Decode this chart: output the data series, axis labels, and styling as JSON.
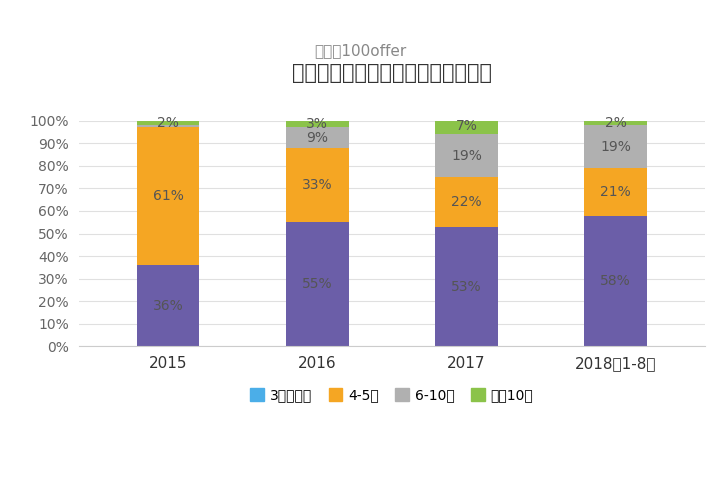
{
  "title": "历年数据类岗位求职者工作年限分布",
  "subtitle": "来源：100offer",
  "categories": [
    "2015",
    "2016",
    "2017",
    "2018年1-8月"
  ],
  "series": [
    {
      "name": "3年及以下",
      "values": [
        36,
        55,
        53,
        58
      ],
      "color": "#4BAEE8"
    },
    {
      "name": "4-5年",
      "values": [
        61,
        33,
        22,
        21
      ],
      "color": "#F5A623"
    },
    {
      "name": "6-10年",
      "values": [
        1,
        9,
        19,
        19
      ],
      "color": "#B0B0B0"
    },
    {
      "name": "大于10年",
      "values": [
        2,
        3,
        7,
        2
      ],
      "color": "#8BC34A"
    }
  ],
  "purple_color": "#6B5EA8",
  "bar_width": 0.42,
  "ylim": [
    0,
    100
  ],
  "ytick_labels": [
    "0%",
    "10%",
    "20%",
    "30%",
    "40%",
    "50%",
    "60%",
    "70%",
    "80%",
    "90%",
    "100%"
  ],
  "ytick_values": [
    0,
    10,
    20,
    30,
    40,
    50,
    60,
    70,
    80,
    90,
    100
  ],
  "title_fontsize": 15,
  "subtitle_fontsize": 11,
  "label_fontsize": 10,
  "legend_fontsize": 10,
  "bar_label_color": "#555555"
}
